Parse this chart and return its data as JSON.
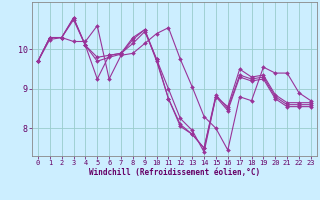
{
  "xlabel": "Windchill (Refroidissement éolien,°C)",
  "bg_color": "#cceeff",
  "line_color": "#993399",
  "grid_color": "#99cccc",
  "series": [
    [
      9.7,
      10.3,
      10.3,
      10.2,
      10.2,
      10.6,
      9.25,
      9.85,
      9.9,
      10.15,
      10.4,
      10.55,
      9.75,
      9.05,
      8.3,
      8.0,
      7.45,
      8.8,
      8.7,
      9.55,
      9.4,
      9.4,
      8.9,
      8.7
    ],
    [
      9.7,
      10.3,
      10.3,
      10.8,
      10.1,
      9.25,
      9.85,
      9.9,
      10.15,
      10.45,
      9.75,
      9.0,
      8.25,
      7.95,
      7.4,
      8.8,
      8.55,
      9.5,
      9.3,
      9.35,
      8.85,
      8.65,
      8.65,
      8.65
    ],
    [
      9.7,
      10.3,
      10.3,
      10.8,
      10.1,
      9.8,
      9.85,
      9.9,
      10.3,
      10.5,
      9.75,
      8.75,
      8.05,
      7.85,
      7.5,
      8.85,
      8.5,
      9.35,
      9.25,
      9.3,
      8.8,
      8.6,
      8.6,
      8.6
    ],
    [
      9.7,
      10.25,
      10.3,
      10.75,
      10.1,
      9.7,
      9.8,
      9.88,
      10.25,
      10.5,
      9.7,
      8.75,
      8.1,
      7.85,
      7.5,
      8.8,
      8.45,
      9.3,
      9.2,
      9.25,
      8.75,
      8.55,
      8.55,
      8.55
    ]
  ],
  "ylim": [
    7.3,
    11.2
  ],
  "xlim": [
    -0.5,
    23.5
  ],
  "yticks": [
    8,
    9,
    10
  ],
  "xticks": [
    0,
    1,
    2,
    3,
    4,
    5,
    6,
    7,
    8,
    9,
    10,
    11,
    12,
    13,
    14,
    15,
    16,
    17,
    18,
    19,
    20,
    21,
    22,
    23
  ],
  "tick_fontsize": 5.0,
  "xlabel_fontsize": 5.5,
  "marker_size": 2.0,
  "linewidth": 0.8
}
